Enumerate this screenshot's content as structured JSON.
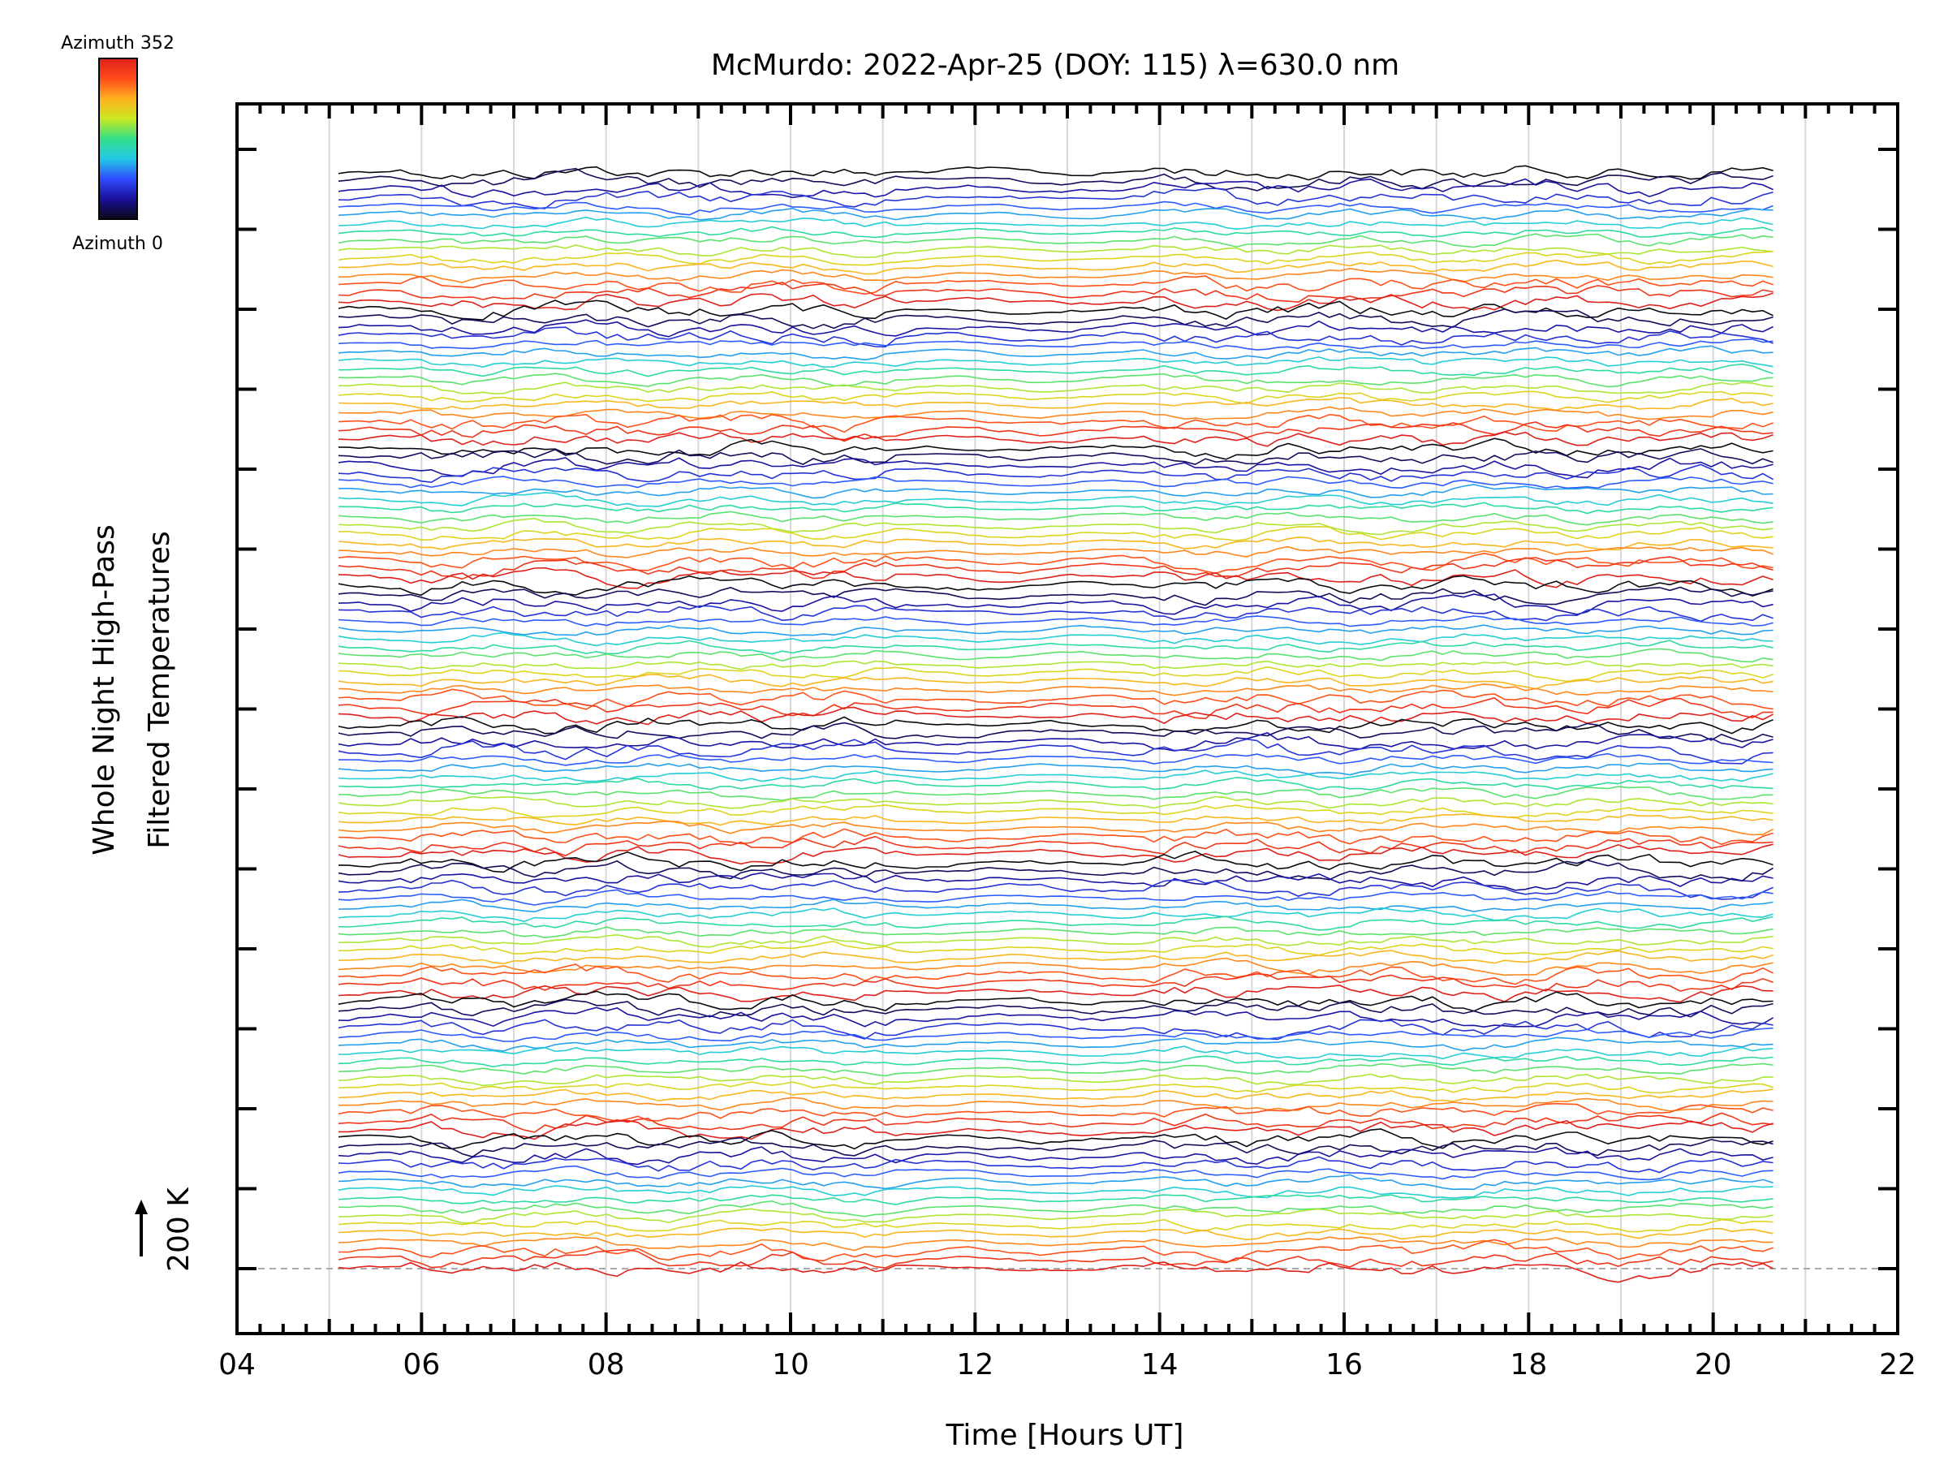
{
  "chart_data": {
    "type": "line",
    "title": "McMurdo: 2022-Apr-25 (DOY: 115) λ=630.0 nm",
    "xlabel": "Time [Hours UT]",
    "ylabel_line1": "Whole Night High-Pass",
    "ylabel_line2": "Filtered Temperatures",
    "scale_label": "200 K",
    "xlim": [
      4,
      22
    ],
    "x_ticks": [
      "04",
      "06",
      "08",
      "10",
      "12",
      "14",
      "16",
      "18",
      "20",
      "22"
    ],
    "x_tick_values": [
      4,
      6,
      8,
      10,
      12,
      14,
      16,
      18,
      20,
      22
    ],
    "time_range": [
      5.1,
      20.65
    ],
    "colorbar": {
      "top_label": "Azimuth 352",
      "bottom_label": "Azimuth 0",
      "colors": [
        "#0a0a14",
        "#1a0f9a",
        "#2f4bff",
        "#22c9e6",
        "#33e08a",
        "#c9e81f",
        "#ffb01f",
        "#ff4a1a",
        "#e0201a"
      ]
    },
    "series_groups": 8,
    "series_per_group": 16,
    "legend": "top-left colorbar",
    "grid": "vertical"
  }
}
